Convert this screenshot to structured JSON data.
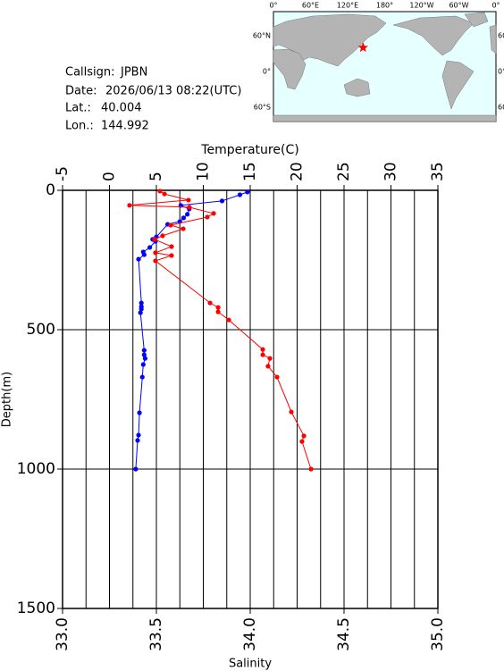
{
  "station": {
    "callsign_label": "Callsign:",
    "callsign": "JPBN",
    "date_label": "Date:",
    "date": "2026/06/13 08:22(UTC)",
    "lat_label": "Lat.:",
    "lat": 40.004,
    "lon_label": "Lon.:",
    "lon": 144.992,
    "map_lon_labels": [
      "0°",
      "60°E",
      "120°E",
      "180°",
      "120°W",
      "60°W",
      "0°"
    ],
    "map_lat_labels": [
      "60°N",
      "0°",
      "60°S"
    ],
    "marker_color": "#ff0000"
  },
  "chart_data": {
    "type": "line",
    "xlabel": "Salinity",
    "x2label": "Temperature(C)",
    "ylabel": "Depth(m)",
    "xlim": [
      33,
      35
    ],
    "xticks": [
      {
        "value": 33,
        "label": "33.0"
      },
      33.5,
      {
        "value": 34,
        "label": "34.0"
      },
      34.5,
      {
        "value": 35,
        "label": "35.0"
      }
    ],
    "x2lim": [
      -5,
      35
    ],
    "x2ticks": [
      -5,
      0,
      5,
      10,
      15,
      20,
      25,
      30,
      35
    ],
    "x2grid": [
      -2.5,
      0,
      2.5,
      5,
      7.5,
      10,
      12.5,
      15,
      17.5,
      20,
      22.5,
      25,
      27.5,
      30,
      32.5
    ],
    "ylim": [
      1500,
      0
    ],
    "yticks": [
      0,
      500,
      1000,
      1500
    ],
    "grid": true,
    "series": [
      {
        "axis": "x2",
        "color": "#0000ff",
        "x": [
          14.7,
          13.9,
          12.0,
          7.6,
          8.5,
          8.3,
          7.9,
          7.5,
          6.2,
          5.0,
          4.6,
          4.9,
          4.3,
          3.6,
          3.7,
          3.1,
          3.4,
          3.4,
          3.4,
          3.3,
          3.7,
          3.7,
          3.8,
          3.6,
          3.5,
          3.2,
          3.1,
          3.0,
          2.8
        ],
        "y": [
          6,
          16,
          38,
          54,
          67,
          86,
          99,
          112,
          122,
          167,
          176,
          183,
          205,
          221,
          231,
          247,
          404,
          417,
          426,
          439,
          574,
          590,
          603,
          625,
          670,
          798,
          878,
          897,
          1000
        ]
      },
      {
        "axis": "x",
        "color": "#ff0000",
        "x": [
          33.519,
          33.543,
          33.671,
          33.357,
          33.676,
          33.805,
          33.771,
          33.576,
          33.643,
          33.533,
          33.49,
          33.581,
          33.495,
          33.581,
          33.495,
          33.786,
          33.829,
          33.829,
          33.886,
          34.067,
          34.067,
          34.105,
          34.095,
          34.143,
          34.219,
          34.286,
          34.276,
          34.324
        ],
        "y": [
          3,
          13,
          35,
          54,
          61,
          83,
          96,
          125,
          138,
          163,
          176,
          202,
          224,
          234,
          253,
          404,
          420,
          436,
          465,
          571,
          590,
          603,
          631,
          670,
          795,
          881,
          901,
          1000
        ]
      }
    ]
  }
}
